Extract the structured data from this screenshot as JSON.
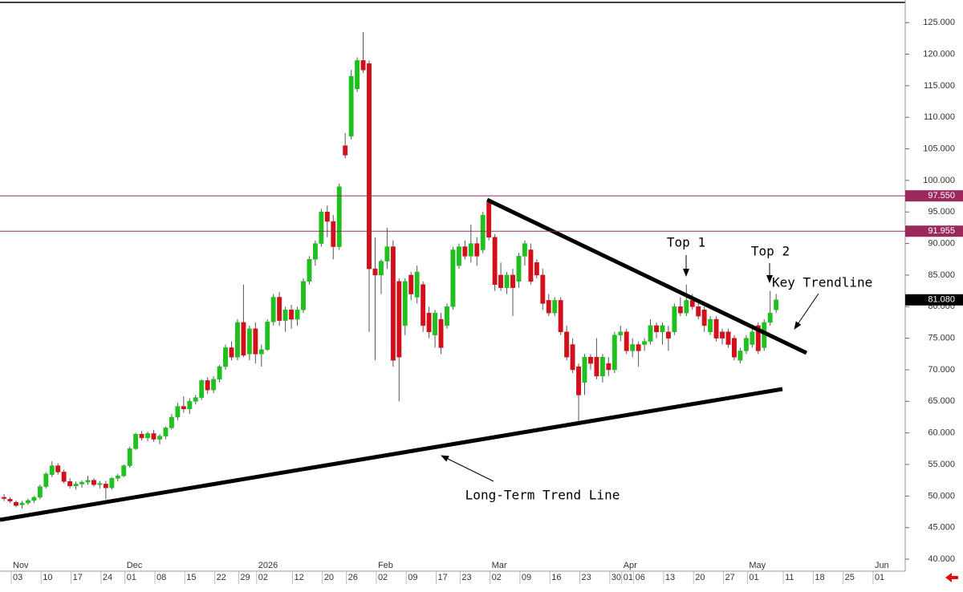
{
  "chart_data": {
    "type": "candlestick",
    "up_color": "#21c021",
    "down_color": "#d2101c",
    "wick_color": "#555555",
    "ylim": [
      38.1,
      128.2
    ],
    "yticks": [
      {
        "value": 125,
        "label": "125.000"
      },
      {
        "value": 120,
        "label": "120.000"
      },
      {
        "value": 115,
        "label": "115.000"
      },
      {
        "value": 110,
        "label": "110.000"
      },
      {
        "value": 105,
        "label": "105.000"
      },
      {
        "value": 100,
        "label": "100.000"
      },
      {
        "value": 95,
        "label": "95.000"
      },
      {
        "value": 90,
        "label": "90.000"
      },
      {
        "value": 85,
        "label": "85.000"
      },
      {
        "value": 80,
        "label": "80.000"
      },
      {
        "value": 75,
        "label": "75.000"
      },
      {
        "value": 70,
        "label": "70.000"
      },
      {
        "value": 65,
        "label": "65.000"
      },
      {
        "value": 60,
        "label": "60.000"
      },
      {
        "value": 55,
        "label": "55.000"
      },
      {
        "value": 50,
        "label": "50.000"
      },
      {
        "value": 45,
        "label": "45.000"
      },
      {
        "value": 40,
        "label": "40.000"
      }
    ],
    "categories": [
      null,
      null,
      "03",
      null,
      null,
      null,
      null,
      "10",
      null,
      null,
      null,
      null,
      "17",
      null,
      null,
      null,
      null,
      "24",
      null,
      null,
      null,
      "01",
      null,
      null,
      null,
      null,
      "08",
      null,
      null,
      null,
      null,
      "15",
      null,
      null,
      null,
      null,
      "22",
      null,
      null,
      null,
      "29",
      null,
      null,
      "02",
      null,
      null,
      null,
      null,
      null,
      "12",
      null,
      null,
      null,
      null,
      "20",
      null,
      null,
      null,
      "26",
      null,
      null,
      null,
      null,
      "02",
      null,
      null,
      null,
      null,
      "09",
      null,
      null,
      null,
      null,
      "17",
      null,
      null,
      null,
      "23",
      null,
      null,
      null,
      null,
      "02",
      null,
      null,
      null,
      null,
      "09",
      null,
      null,
      null,
      null,
      "16",
      null,
      null,
      null,
      null,
      "23",
      null,
      null,
      null,
      null,
      "30",
      null,
      "01",
      null,
      "06",
      null,
      null,
      null,
      null,
      "13",
      null,
      null,
      null,
      null,
      "20",
      null,
      null,
      null,
      null,
      "27",
      null,
      null,
      null,
      "01",
      null,
      null,
      null,
      null,
      null,
      "11",
      null,
      null,
      null,
      null,
      "18",
      null,
      null,
      null,
      null,
      "25",
      null,
      null,
      null,
      null,
      "01"
    ],
    "months": [
      null,
      null,
      "Nov",
      null,
      null,
      null,
      null,
      null,
      null,
      null,
      null,
      null,
      null,
      null,
      null,
      null,
      null,
      null,
      null,
      null,
      null,
      "Dec",
      null,
      null,
      null,
      null,
      null,
      null,
      null,
      null,
      null,
      null,
      null,
      null,
      null,
      null,
      null,
      null,
      null,
      null,
      null,
      null,
      null,
      "2026",
      null,
      null,
      null,
      null,
      null,
      null,
      null,
      null,
      null,
      null,
      null,
      null,
      null,
      null,
      null,
      null,
      null,
      null,
      null,
      "Feb",
      null,
      null,
      null,
      null,
      null,
      null,
      null,
      null,
      null,
      null,
      null,
      null,
      null,
      null,
      null,
      null,
      null,
      null,
      "Mar",
      null,
      null,
      null,
      null,
      null,
      null,
      null,
      null,
      null,
      null,
      null,
      null,
      null,
      null,
      null,
      null,
      null,
      null,
      null,
      null,
      null,
      "Apr",
      null,
      null,
      null,
      null,
      null,
      null,
      null,
      null,
      null,
      null,
      null,
      null,
      null,
      null,
      null,
      null,
      null,
      null,
      null,
      null,
      "May",
      null,
      null,
      null,
      null,
      null,
      null,
      null,
      null,
      null,
      null,
      null,
      null,
      null,
      null,
      null,
      null,
      null,
      null,
      null,
      null,
      "Jun"
    ],
    "open": [
      49.8,
      49.5,
      49.0,
      48.6,
      48.9,
      49.3,
      49.8,
      51.5,
      53.4,
      54.8,
      53.8,
      52.3,
      51.6,
      51.9,
      52.2,
      52.5,
      51.8,
      51.9,
      51.3,
      52.8,
      53.2,
      54.8,
      57.5,
      59.8,
      59.2,
      59.9,
      59.0,
      59.5,
      60.8,
      62.5,
      64.2,
      63.8,
      65.0,
      65.6,
      68.3,
      66.8,
      68.5,
      70.5,
      73.5,
      72.0,
      77.5,
      72.5,
      76.5,
      72.5,
      73.2,
      77.6,
      81.5,
      77.8,
      79.5,
      78.0,
      79.5,
      84.0,
      87.5,
      90.0,
      95.0,
      93.5,
      89.5,
      105.5,
      107.0,
      114.5,
      119.0,
      118.5,
      86.0,
      85.0,
      87.2,
      89.5,
      84.0,
      77.0,
      85.0,
      81.5,
      83.5,
      79.0,
      75.5,
      78.0,
      77.0,
      80.0,
      86.5,
      89.5,
      88.0,
      90.0,
      89.0,
      96.5,
      91.0,
      85.0,
      83.0,
      85.0,
      84.0,
      88.0,
      89.0,
      87.0,
      85.0,
      81.0,
      79.0,
      81.0,
      76.0,
      74.0,
      70.5,
      68.0,
      72.0,
      72.0,
      69.0,
      71.0,
      70.0,
      75.5,
      76.0,
      73.0,
      74.0,
      74.0,
      74.5,
      77.0,
      76.0,
      76.0,
      76.0,
      80.0,
      79.0,
      81.0,
      80.0,
      79.5,
      76.0,
      78.0,
      76.0,
      76.0,
      75.0,
      71.5,
      73.0,
      74.0,
      77.0,
      73.5,
      77.5,
      79.5,
      null,
      null,
      null,
      null,
      null,
      null,
      null,
      null,
      null,
      null,
      null,
      null,
      null,
      null,
      null,
      null,
      null
    ],
    "high": [
      50.3,
      49.8,
      49.3,
      49.2,
      49.6,
      50.0,
      51.8,
      53.8,
      55.5,
      55.2,
      54.2,
      52.8,
      52.3,
      52.5,
      53.2,
      52.8,
      52.4,
      52.4,
      53.0,
      53.5,
      55.0,
      57.8,
      60.0,
      60.3,
      60.2,
      60.5,
      59.8,
      61.0,
      63.0,
      64.8,
      65.8,
      65.5,
      66.0,
      68.5,
      68.8,
      69.0,
      70.8,
      74.0,
      74.5,
      78.0,
      83.5,
      77.0,
      77.5,
      74.0,
      78.0,
      82.0,
      82.3,
      80.0,
      80.3,
      80.0,
      84.5,
      88.0,
      90.5,
      95.5,
      96.0,
      94.5,
      99.5,
      107.5,
      117.5,
      119.5,
      123.5,
      119.0,
      91.0,
      87.5,
      92.5,
      90.5,
      84.5,
      84.5,
      85.5,
      86.5,
      84.0,
      80.0,
      79.5,
      79.0,
      80.5,
      89.5,
      90.0,
      90.5,
      93.0,
      91.0,
      95.0,
      97.0,
      91.5,
      87.0,
      85.5,
      86.0,
      88.5,
      90.5,
      90.0,
      87.5,
      86.0,
      82.0,
      81.5,
      81.5,
      77.0,
      75.0,
      71.0,
      72.5,
      72.5,
      75.0,
      72.5,
      72.0,
      76.0,
      77.0,
      76.5,
      75.0,
      74.5,
      75.0,
      78.0,
      77.5,
      77.5,
      77.0,
      80.5,
      81.5,
      83.5,
      82.0,
      81.0,
      80.0,
      78.5,
      78.5,
      76.5,
      76.5,
      75.5,
      73.5,
      75.5,
      76.5,
      77.5,
      78.0,
      82.5,
      82.0,
      null,
      null,
      null,
      null,
      null,
      null,
      null,
      null,
      null,
      null,
      null,
      null,
      null,
      null,
      null,
      null,
      null
    ],
    "low": [
      49.2,
      48.9,
      48.2,
      48.0,
      48.6,
      48.9,
      49.5,
      51.2,
      53.0,
      53.4,
      52.0,
      51.2,
      51.0,
      51.3,
      51.8,
      51.5,
      51.2,
      49.5,
      51.0,
      52.3,
      53.0,
      54.5,
      57.3,
      58.8,
      58.7,
      58.6,
      58.2,
      59.0,
      60.5,
      62.0,
      63.2,
      63.0,
      64.5,
      65.2,
      66.2,
      66.3,
      68.0,
      70.0,
      71.5,
      71.5,
      72.0,
      71.5,
      71.0,
      70.5,
      73.0,
      77.0,
      77.0,
      76.0,
      76.5,
      77.0,
      79.0,
      83.5,
      86.5,
      89.5,
      91.0,
      87.5,
      89.0,
      103.5,
      106.5,
      114.0,
      117.0,
      76.0,
      71.5,
      82.0,
      86.0,
      70.5,
      65.0,
      75.5,
      81.0,
      80.5,
      76.0,
      75.0,
      73.5,
      72.5,
      76.5,
      79.5,
      86.0,
      87.5,
      87.0,
      86.5,
      88.5,
      90.5,
      82.5,
      82.5,
      82.0,
      78.5,
      83.0,
      86.5,
      83.5,
      84.5,
      79.5,
      78.5,
      78.5,
      75.5,
      71.5,
      69.5,
      61.7,
      66.0,
      70.0,
      68.5,
      68.0,
      69.0,
      69.5,
      74.5,
      72.5,
      72.0,
      70.5,
      73.0,
      74.0,
      75.0,
      74.0,
      73.0,
      75.5,
      78.5,
      78.5,
      79.5,
      78.0,
      76.0,
      75.5,
      74.5,
      74.0,
      73.5,
      71.5,
      71.0,
      72.5,
      73.5,
      72.5,
      73.0,
      77.0,
      79.0,
      null,
      null,
      null,
      null,
      null,
      null,
      null,
      null,
      null,
      null,
      null,
      null,
      null,
      null,
      null,
      null,
      null
    ],
    "close": [
      49.6,
      49.2,
      48.5,
      48.9,
      49.3,
      49.8,
      51.5,
      53.5,
      54.8,
      53.8,
      52.3,
      51.6,
      51.9,
      52.2,
      52.5,
      51.8,
      52.0,
      51.3,
      52.8,
      53.2,
      54.8,
      57.5,
      59.8,
      59.2,
      59.9,
      59.0,
      59.5,
      60.8,
      62.5,
      64.2,
      63.8,
      65.0,
      65.6,
      68.3,
      66.8,
      68.5,
      70.5,
      73.5,
      72.0,
      77.5,
      72.3,
      76.5,
      72.5,
      73.2,
      77.6,
      81.5,
      77.8,
      79.5,
      78.0,
      79.5,
      84.0,
      87.5,
      90.0,
      95.0,
      93.5,
      89.5,
      99.0,
      104.0,
      116.5,
      119.0,
      117.5,
      86.0,
      85.0,
      87.2,
      89.5,
      71.5,
      72.0,
      84.0,
      82.0,
      85.5,
      77.0,
      76.0,
      79.0,
      73.5,
      80.0,
      89.0,
      89.5,
      88.0,
      90.0,
      88.0,
      94.5,
      91.0,
      83.5,
      83.0,
      85.0,
      83.0,
      88.0,
      90.0,
      84.0,
      85.0,
      80.5,
      79.0,
      81.0,
      76.0,
      72.0,
      70.0,
      66.0,
      72.0,
      71.0,
      69.0,
      72.0,
      70.0,
      75.5,
      76.0,
      73.0,
      74.0,
      73.0,
      74.5,
      77.0,
      76.0,
      77.0,
      75.0,
      80.0,
      79.0,
      81.0,
      80.0,
      78.5,
      77.0,
      78.0,
      75.0,
      75.0,
      74.0,
      72.0,
      73.0,
      75.0,
      76.0,
      73.0,
      77.5,
      79.0,
      81.08,
      null,
      null,
      null,
      null,
      null,
      null,
      null,
      null,
      null,
      null,
      null,
      null,
      null,
      null,
      null,
      null,
      null
    ],
    "price_lines": [
      {
        "value": 97.55,
        "label": "97.550",
        "color": "#9b2a5c"
      },
      {
        "value": 91.955,
        "label": "91.955",
        "color": "#9b2a5c"
      }
    ],
    "last_price": {
      "value": 81.08,
      "label": "81.080",
      "color": "#000000"
    },
    "annotations": [
      "Top 1",
      "Top 2",
      "Key Trendline",
      "Long-Term Trend Line"
    ]
  }
}
